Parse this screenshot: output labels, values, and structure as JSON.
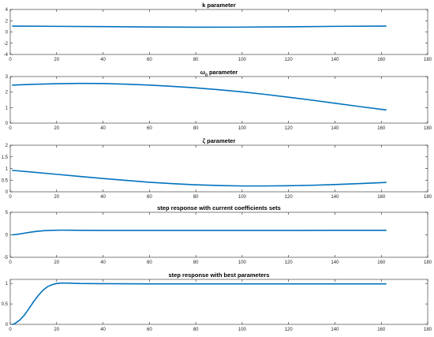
{
  "colors": {
    "series": "#0072BD",
    "axis": "#262626"
  },
  "chart_data": [
    {
      "type": "line",
      "title": "k parameter",
      "xlim": [
        0,
        180
      ],
      "ylim": [
        -4,
        4
      ],
      "xticks": [
        0,
        20,
        40,
        60,
        80,
        100,
        120,
        140,
        160,
        180
      ],
      "yticks": [
        -4,
        -2,
        0,
        2,
        4
      ],
      "grid": false,
      "series": [
        {
          "x": [
            1,
            20,
            40,
            60,
            80,
            100,
            120,
            140,
            162
          ],
          "y": [
            1.05,
            1.0,
            0.95,
            0.88,
            0.85,
            0.86,
            0.92,
            1.0,
            1.05
          ]
        }
      ]
    },
    {
      "type": "line",
      "title": "ω",
      "title_subscript": "0",
      "title_suffix": " parameter",
      "xlim": [
        0,
        180
      ],
      "ylim": [
        0,
        3
      ],
      "xticks": [
        0,
        20,
        40,
        60,
        80,
        100,
        120,
        140,
        160,
        180
      ],
      "yticks": [
        0,
        1,
        2,
        3
      ],
      "grid": false,
      "series": [
        {
          "x": [
            1,
            10,
            20,
            30,
            40,
            50,
            60,
            70,
            80,
            90,
            100,
            110,
            120,
            130,
            140,
            150,
            162
          ],
          "y": [
            2.45,
            2.5,
            2.54,
            2.56,
            2.55,
            2.51,
            2.45,
            2.37,
            2.27,
            2.15,
            2.01,
            1.85,
            1.67,
            1.48,
            1.28,
            1.08,
            0.85
          ]
        }
      ]
    },
    {
      "type": "line",
      "title": "ζ parameter",
      "xlim": [
        0,
        180
      ],
      "ylim": [
        0,
        2
      ],
      "xticks": [
        0,
        20,
        40,
        60,
        80,
        100,
        120,
        140,
        160,
        180
      ],
      "yticks": [
        0,
        0.5,
        1,
        1.5,
        2
      ],
      "grid": false,
      "series": [
        {
          "x": [
            1,
            10,
            20,
            30,
            40,
            50,
            60,
            70,
            80,
            90,
            100,
            110,
            120,
            130,
            140,
            150,
            162
          ],
          "y": [
            0.92,
            0.84,
            0.75,
            0.66,
            0.57,
            0.49,
            0.41,
            0.35,
            0.3,
            0.27,
            0.25,
            0.25,
            0.26,
            0.28,
            0.31,
            0.35,
            0.4
          ]
        }
      ]
    },
    {
      "type": "line",
      "title": "step response with current coefficients sets",
      "xlim": [
        0,
        180
      ],
      "ylim": [
        -5,
        5
      ],
      "xticks": [
        0,
        20,
        40,
        60,
        80,
        100,
        120,
        140,
        160,
        180
      ],
      "yticks": [
        -5,
        0,
        5
      ],
      "grid": false,
      "series": [
        {
          "x": [
            1,
            3,
            6,
            9,
            12,
            15,
            18,
            22,
            26,
            30,
            40,
            60,
            80,
            100,
            120,
            140,
            162
          ],
          "y": [
            0,
            0.1,
            0.35,
            0.6,
            0.8,
            0.93,
            1.0,
            1.03,
            1.02,
            1.0,
            0.98,
            0.97,
            0.97,
            0.97,
            0.98,
            0.99,
            1.0
          ]
        }
      ]
    },
    {
      "type": "line",
      "title": "step response with best parameters",
      "xlim": [
        0,
        180
      ],
      "ylim": [
        0,
        1.1
      ],
      "xticks": [
        0,
        20,
        40,
        60,
        80,
        100,
        120,
        140,
        160,
        180
      ],
      "yticks": [
        0,
        0.5,
        1
      ],
      "grid": false,
      "series": [
        {
          "x": [
            1,
            2,
            4,
            6,
            8,
            10,
            12,
            14,
            16,
            18,
            20,
            22,
            25,
            30,
            40,
            60,
            80,
            100,
            120,
            140,
            162
          ],
          "y": [
            0,
            0.02,
            0.1,
            0.22,
            0.38,
            0.55,
            0.7,
            0.83,
            0.92,
            0.97,
            1.0,
            1.01,
            1.01,
            1.0,
            0.995,
            0.99,
            0.99,
            0.99,
            0.99,
            0.99,
            0.99
          ]
        }
      ]
    }
  ]
}
